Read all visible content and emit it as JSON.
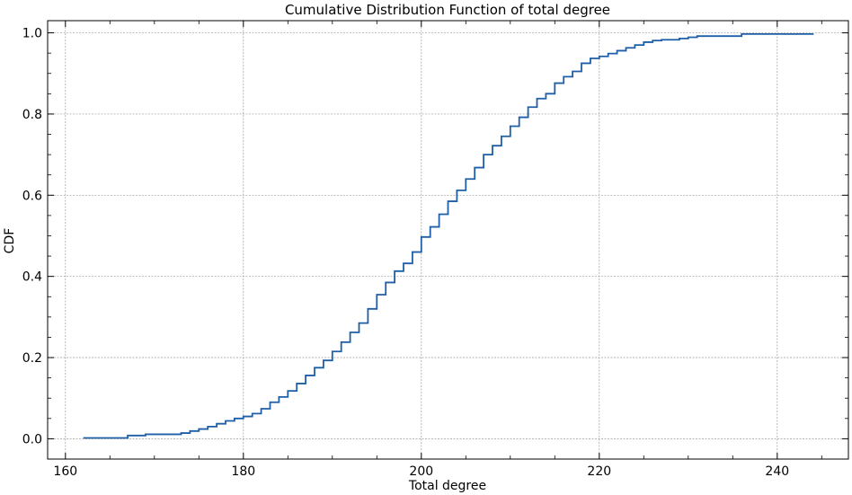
{
  "chart_data": {
    "type": "line",
    "title": "Cumulative Distribution Function of total degree",
    "xlabel": "Total degree",
    "ylabel": "CDF",
    "xlim": [
      158,
      248
    ],
    "ylim": [
      -0.05,
      1.03
    ],
    "xticks": [
      160,
      180,
      200,
      220,
      240
    ],
    "xtick_labels": [
      "160",
      "180",
      "200",
      "220",
      "240"
    ],
    "yticks": [
      0.0,
      0.2,
      0.4,
      0.6,
      0.8,
      1.0
    ],
    "ytick_labels": [
      "0.0",
      "0.2",
      "0.4",
      "0.6",
      "0.8",
      "1.0"
    ],
    "grid": true,
    "line_color": "#1f5fa8",
    "step": true,
    "series": [
      {
        "x": [
          162,
          167,
          169,
          173,
          174,
          175,
          176,
          177,
          178,
          179,
          180,
          181,
          182,
          183,
          184,
          185,
          186,
          187,
          188,
          189,
          190,
          191,
          192,
          193,
          194,
          195,
          196,
          197,
          198,
          199,
          200,
          201,
          202,
          203,
          204,
          205,
          206,
          207,
          208,
          209,
          210,
          211,
          212,
          213,
          214,
          215,
          216,
          217,
          218,
          219,
          220,
          221,
          222,
          223,
          224,
          225,
          226,
          227,
          229,
          230,
          231,
          236,
          244
        ],
        "y": [
          0.002,
          0.008,
          0.011,
          0.014,
          0.019,
          0.024,
          0.03,
          0.037,
          0.044,
          0.05,
          0.055,
          0.062,
          0.074,
          0.09,
          0.103,
          0.118,
          0.136,
          0.156,
          0.175,
          0.193,
          0.215,
          0.238,
          0.262,
          0.285,
          0.32,
          0.355,
          0.385,
          0.413,
          0.432,
          0.46,
          0.497,
          0.522,
          0.553,
          0.585,
          0.612,
          0.64,
          0.668,
          0.7,
          0.722,
          0.745,
          0.77,
          0.792,
          0.817,
          0.838,
          0.85,
          0.876,
          0.892,
          0.905,
          0.925,
          0.937,
          0.942,
          0.949,
          0.956,
          0.963,
          0.97,
          0.977,
          0.981,
          0.983,
          0.986,
          0.989,
          0.992,
          0.997,
          0.999
        ]
      }
    ]
  }
}
